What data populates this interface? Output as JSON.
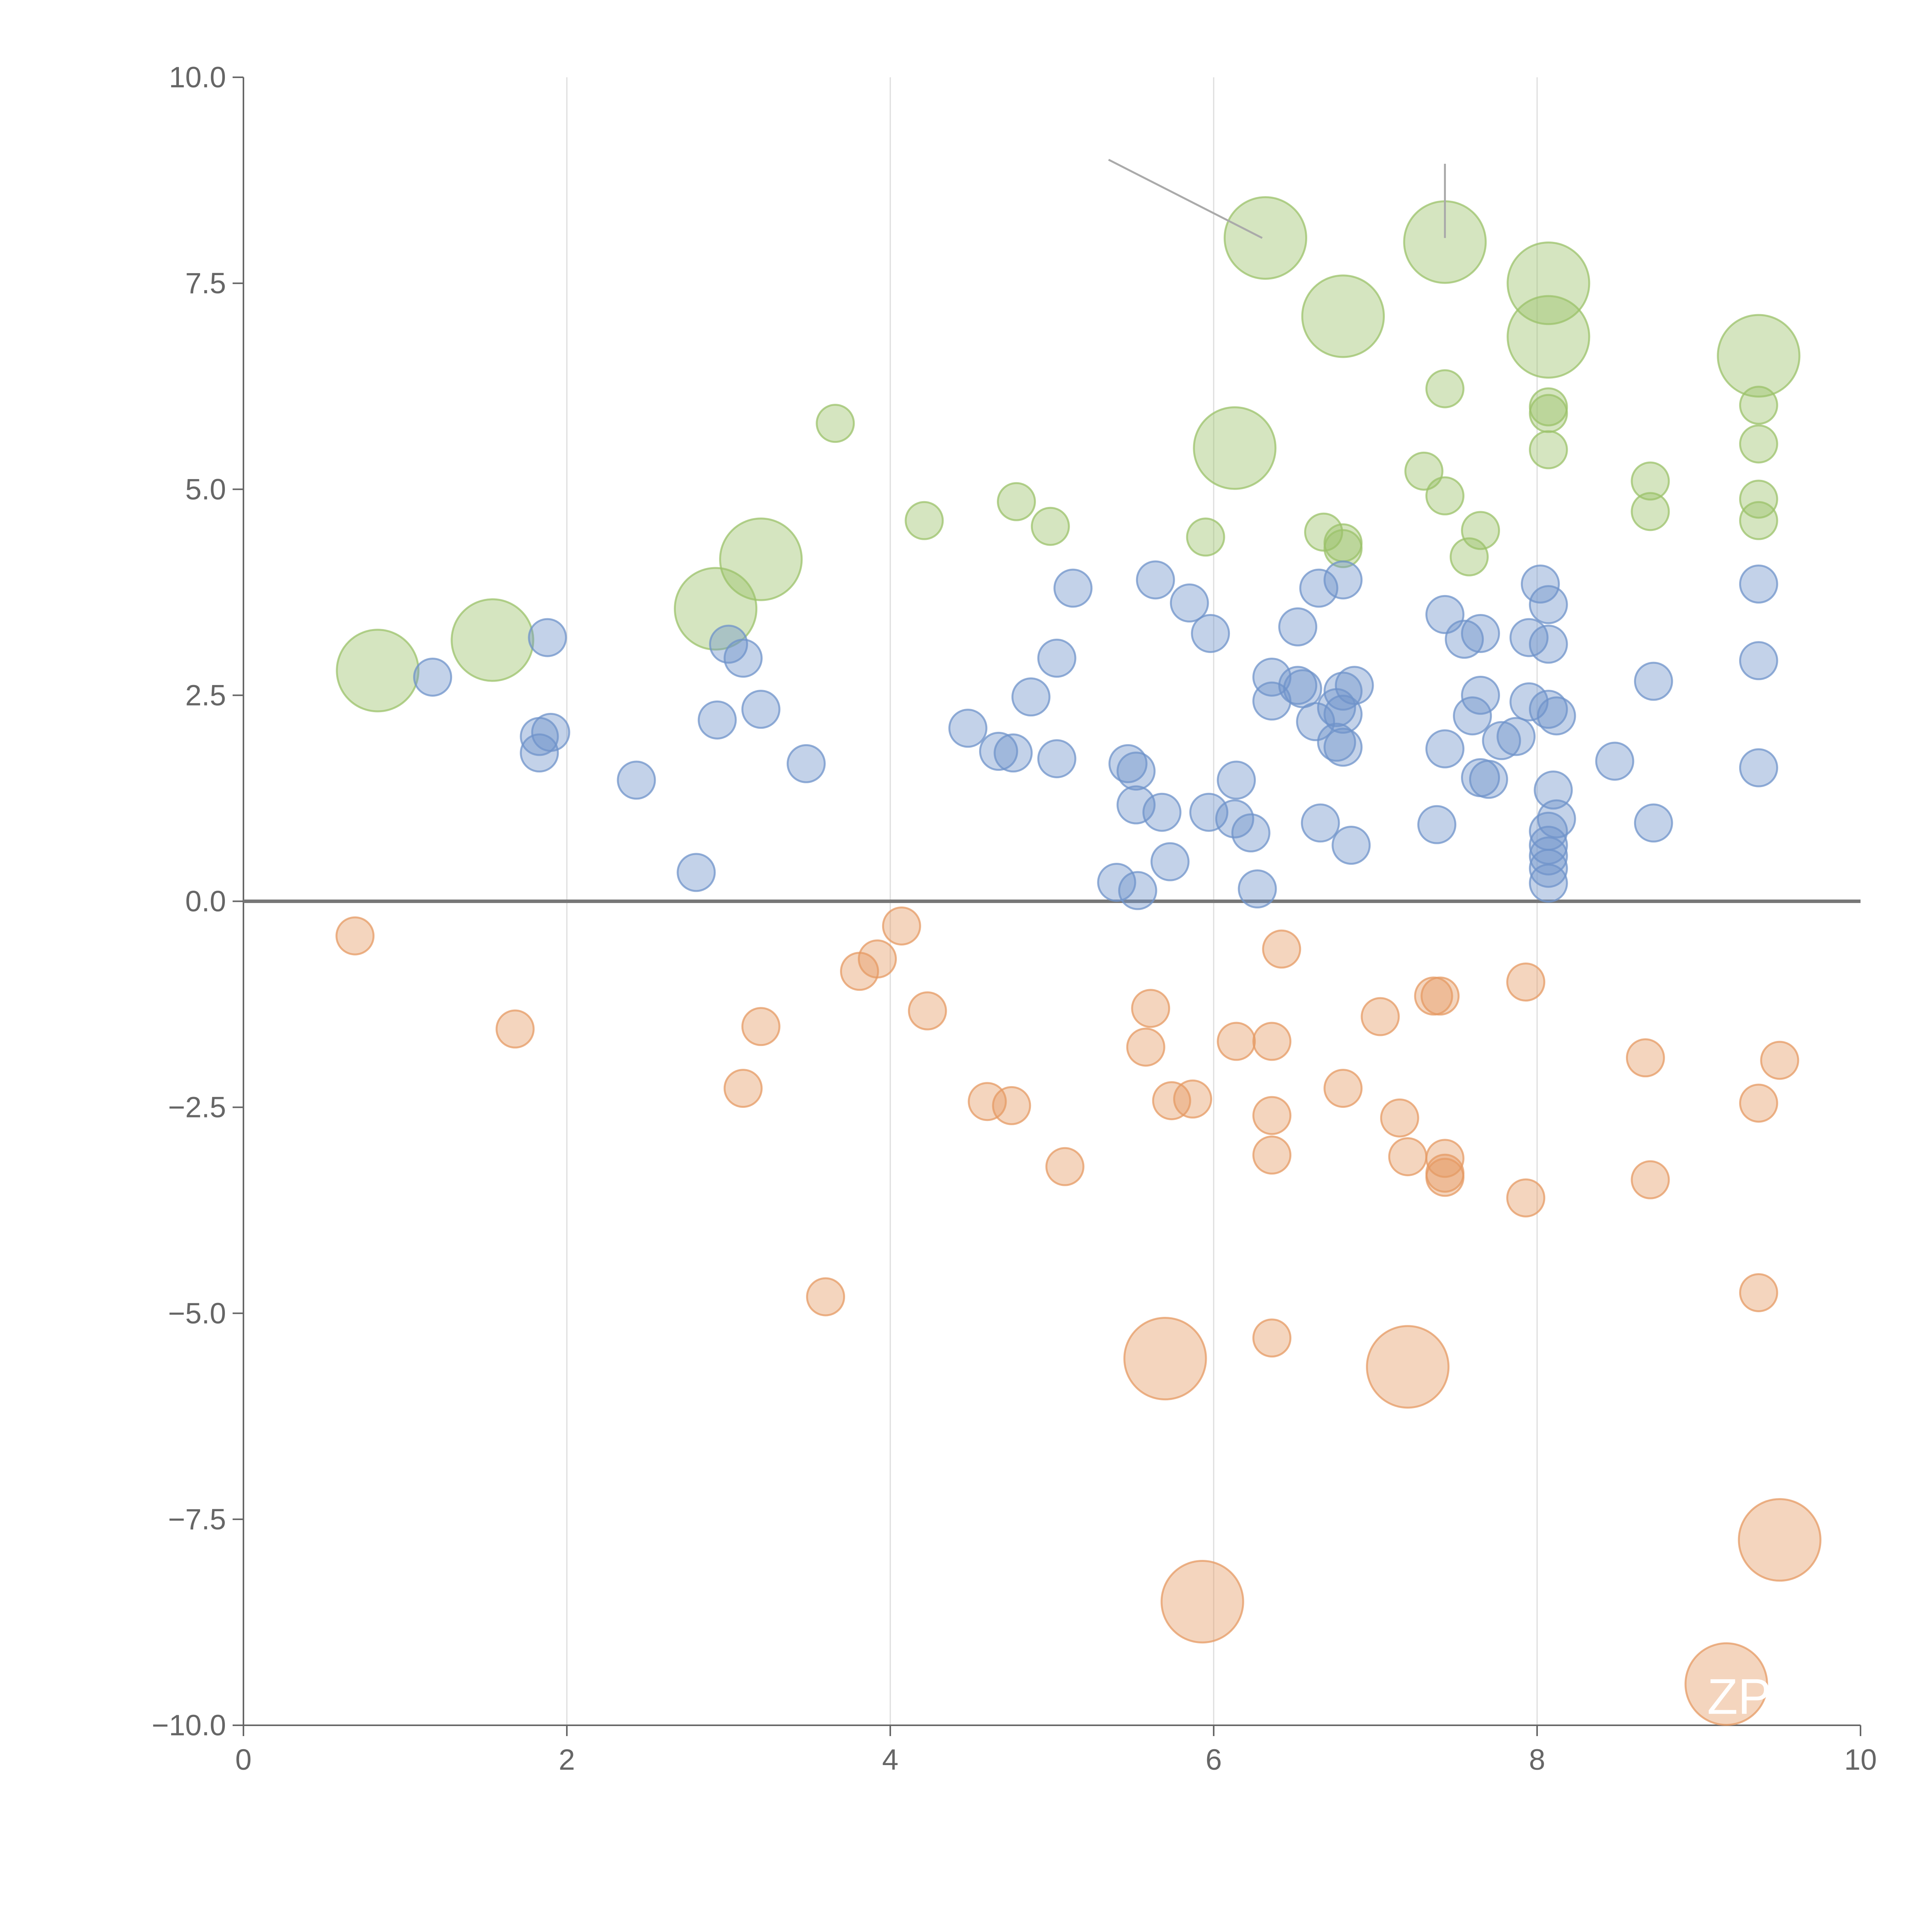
{
  "chart_data": {
    "type": "scatter",
    "title": "",
    "xlabel": "",
    "ylabel": "",
    "xlim": [
      0,
      10
    ],
    "ylim": [
      -10,
      10
    ],
    "x_ticks": [
      "0",
      "2",
      "4",
      "6",
      "8",
      "10"
    ],
    "y_ticks": [
      "10.0",
      "7.5",
      "5.0",
      "2.5",
      "0.0",
      "−2.5",
      "−5.0",
      "−7.5",
      "−10.0"
    ],
    "x_tick_values": [
      0,
      2,
      4,
      6,
      8,
      10
    ],
    "y_tick_values": [
      10,
      7.5,
      5,
      2.5,
      0,
      -2.5,
      -5,
      -7.5,
      -10
    ],
    "vertical_grid": [
      2,
      4,
      6,
      8
    ],
    "horizontal_reference_line": 0,
    "colors": {
      "green": "#9bc26a",
      "blue": "#6f93ca",
      "orange": "#e59a63",
      "axis": "#666666",
      "grid": "#dddddd"
    },
    "leader_lines": [
      {
        "x1": 5.35,
        "y1": 9.0,
        "x2": 6.3,
        "y2": 8.05
      },
      {
        "x1": 7.43,
        "y1": 8.95,
        "x2": 7.43,
        "y2": 8.05
      }
    ],
    "visible_labels": [
      {
        "text": "ZP",
        "x": 9.25,
        "y": -9.65
      }
    ],
    "series": [
      {
        "color": "green",
        "points": [
          {
            "x": 6.32,
            "y": 8.05,
            "s": 2.2
          },
          {
            "x": 7.43,
            "y": 8.0,
            "s": 2.2
          },
          {
            "x": 8.07,
            "y": 7.5,
            "s": 2.2
          },
          {
            "x": 6.8,
            "y": 7.1,
            "s": 2.2
          },
          {
            "x": 8.07,
            "y": 6.85,
            "s": 2.2
          },
          {
            "x": 9.37,
            "y": 6.62,
            "s": 2.2
          },
          {
            "x": 6.13,
            "y": 5.5,
            "s": 2.2
          },
          {
            "x": 3.2,
            "y": 4.15,
            "s": 2.2
          },
          {
            "x": 2.92,
            "y": 3.55,
            "s": 2.2
          },
          {
            "x": 1.54,
            "y": 3.17,
            "s": 2.2
          },
          {
            "x": 0.83,
            "y": 2.8,
            "s": 2.2
          },
          {
            "x": 3.66,
            "y": 5.8,
            "s": 1
          },
          {
            "x": 7.43,
            "y": 6.22,
            "s": 1
          },
          {
            "x": 8.07,
            "y": 6.0,
            "s": 1
          },
          {
            "x": 8.07,
            "y": 5.92,
            "s": 1
          },
          {
            "x": 9.37,
            "y": 6.02,
            "s": 1
          },
          {
            "x": 9.37,
            "y": 5.55,
            "s": 1
          },
          {
            "x": 8.07,
            "y": 5.48,
            "s": 1
          },
          {
            "x": 7.3,
            "y": 5.22,
            "s": 1
          },
          {
            "x": 8.7,
            "y": 5.1,
            "s": 1
          },
          {
            "x": 7.43,
            "y": 4.92,
            "s": 1
          },
          {
            "x": 9.37,
            "y": 4.88,
            "s": 1
          },
          {
            "x": 4.78,
            "y": 4.85,
            "s": 1
          },
          {
            "x": 8.7,
            "y": 4.73,
            "s": 1
          },
          {
            "x": 4.21,
            "y": 4.62,
            "s": 1
          },
          {
            "x": 9.37,
            "y": 4.62,
            "s": 1
          },
          {
            "x": 4.99,
            "y": 4.55,
            "s": 1
          },
          {
            "x": 7.65,
            "y": 4.5,
            "s": 1
          },
          {
            "x": 6.68,
            "y": 4.48,
            "s": 1
          },
          {
            "x": 5.95,
            "y": 4.42,
            "s": 1
          },
          {
            "x": 6.8,
            "y": 4.35,
            "s": 1
          },
          {
            "x": 6.8,
            "y": 4.28,
            "s": 1
          },
          {
            "x": 7.58,
            "y": 4.18,
            "s": 1
          }
        ]
      },
      {
        "color": "blue",
        "points": [
          {
            "x": 5.64,
            "y": 3.9,
            "s": 1
          },
          {
            "x": 6.8,
            "y": 3.9,
            "s": 1
          },
          {
            "x": 8.02,
            "y": 3.85,
            "s": 1
          },
          {
            "x": 9.37,
            "y": 3.85,
            "s": 1
          },
          {
            "x": 6.65,
            "y": 3.8,
            "s": 1
          },
          {
            "x": 5.13,
            "y": 3.8,
            "s": 1
          },
          {
            "x": 5.85,
            "y": 3.62,
            "s": 1
          },
          {
            "x": 8.07,
            "y": 3.6,
            "s": 1
          },
          {
            "x": 7.43,
            "y": 3.48,
            "s": 1
          },
          {
            "x": 6.52,
            "y": 3.33,
            "s": 1
          },
          {
            "x": 5.98,
            "y": 3.25,
            "s": 1
          },
          {
            "x": 7.65,
            "y": 3.25,
            "s": 1
          },
          {
            "x": 1.88,
            "y": 3.2,
            "s": 1
          },
          {
            "x": 7.55,
            "y": 3.18,
            "s": 1
          },
          {
            "x": 7.95,
            "y": 3.2,
            "s": 1
          },
          {
            "x": 3.0,
            "y": 3.12,
            "s": 1
          },
          {
            "x": 8.07,
            "y": 3.12,
            "s": 1
          },
          {
            "x": 3.09,
            "y": 2.95,
            "s": 1
          },
          {
            "x": 5.03,
            "y": 2.95,
            "s": 1
          },
          {
            "x": 9.37,
            "y": 2.92,
            "s": 1
          },
          {
            "x": 1.17,
            "y": 2.72,
            "s": 1
          },
          {
            "x": 6.36,
            "y": 2.72,
            "s": 1
          },
          {
            "x": 8.72,
            "y": 2.67,
            "s": 1
          },
          {
            "x": 6.87,
            "y": 2.62,
            "s": 1
          },
          {
            "x": 6.52,
            "y": 2.62,
            "s": 1
          },
          {
            "x": 6.55,
            "y": 2.58,
            "s": 1
          },
          {
            "x": 6.8,
            "y": 2.55,
            "s": 1
          },
          {
            "x": 4.87,
            "y": 2.48,
            "s": 1
          },
          {
            "x": 7.65,
            "y": 2.5,
            "s": 1
          },
          {
            "x": 6.36,
            "y": 2.43,
            "s": 1
          },
          {
            "x": 7.95,
            "y": 2.42,
            "s": 1
          },
          {
            "x": 6.76,
            "y": 2.35,
            "s": 1
          },
          {
            "x": 8.07,
            "y": 2.33,
            "s": 1
          },
          {
            "x": 3.2,
            "y": 2.33,
            "s": 1
          },
          {
            "x": 6.8,
            "y": 2.27,
            "s": 1
          },
          {
            "x": 7.6,
            "y": 2.25,
            "s": 1
          },
          {
            "x": 8.12,
            "y": 2.25,
            "s": 1
          },
          {
            "x": 2.93,
            "y": 2.2,
            "s": 1
          },
          {
            "x": 6.63,
            "y": 2.18,
            "s": 1
          },
          {
            "x": 4.48,
            "y": 2.1,
            "s": 1
          },
          {
            "x": 1.9,
            "y": 2.05,
            "s": 1
          },
          {
            "x": 1.83,
            "y": 2.0,
            "s": 1
          },
          {
            "x": 7.87,
            "y": 2.0,
            "s": 1
          },
          {
            "x": 7.78,
            "y": 1.95,
            "s": 1
          },
          {
            "x": 6.76,
            "y": 1.93,
            "s": 1
          },
          {
            "x": 6.8,
            "y": 1.87,
            "s": 1
          },
          {
            "x": 7.43,
            "y": 1.85,
            "s": 1
          },
          {
            "x": 1.83,
            "y": 1.8,
            "s": 1
          },
          {
            "x": 4.67,
            "y": 1.82,
            "s": 1
          },
          {
            "x": 4.76,
            "y": 1.8,
            "s": 1
          },
          {
            "x": 5.03,
            "y": 1.73,
            "s": 1
          },
          {
            "x": 8.48,
            "y": 1.7,
            "s": 1
          },
          {
            "x": 3.48,
            "y": 1.67,
            "s": 1
          },
          {
            "x": 5.47,
            "y": 1.67,
            "s": 1
          },
          {
            "x": 9.37,
            "y": 1.62,
            "s": 1
          },
          {
            "x": 5.52,
            "y": 1.58,
            "s": 1
          },
          {
            "x": 7.65,
            "y": 1.5,
            "s": 1
          },
          {
            "x": 7.7,
            "y": 1.48,
            "s": 1
          },
          {
            "x": 2.43,
            "y": 1.47,
            "s": 1
          },
          {
            "x": 6.14,
            "y": 1.47,
            "s": 1
          },
          {
            "x": 8.1,
            "y": 1.35,
            "s": 1
          },
          {
            "x": 5.52,
            "y": 1.17,
            "s": 1
          },
          {
            "x": 5.68,
            "y": 1.08,
            "s": 1
          },
          {
            "x": 5.97,
            "y": 1.08,
            "s": 1
          },
          {
            "x": 8.12,
            "y": 1.0,
            "s": 1
          },
          {
            "x": 6.13,
            "y": 1.0,
            "s": 1
          },
          {
            "x": 6.66,
            "y": 0.95,
            "s": 1
          },
          {
            "x": 8.72,
            "y": 0.95,
            "s": 1
          },
          {
            "x": 7.38,
            "y": 0.93,
            "s": 1
          },
          {
            "x": 8.07,
            "y": 0.85,
            "s": 1
          },
          {
            "x": 6.23,
            "y": 0.83,
            "s": 1
          },
          {
            "x": 8.07,
            "y": 0.68,
            "s": 1
          },
          {
            "x": 6.85,
            "y": 0.68,
            "s": 1
          },
          {
            "x": 8.07,
            "y": 0.55,
            "s": 1
          },
          {
            "x": 5.73,
            "y": 0.48,
            "s": 1
          },
          {
            "x": 8.07,
            "y": 0.4,
            "s": 1
          },
          {
            "x": 2.8,
            "y": 0.35,
            "s": 1
          },
          {
            "x": 5.4,
            "y": 0.23,
            "s": 1
          },
          {
            "x": 8.07,
            "y": 0.22,
            "s": 1
          },
          {
            "x": 5.53,
            "y": 0.13,
            "s": 1
          },
          {
            "x": 6.27,
            "y": 0.15,
            "s": 1
          }
        ]
      },
      {
        "color": "orange",
        "points": [
          {
            "x": 4.07,
            "y": -0.3,
            "s": 1
          },
          {
            "x": 0.69,
            "y": -0.42,
            "s": 1
          },
          {
            "x": 6.42,
            "y": -0.58,
            "s": 1
          },
          {
            "x": 3.92,
            "y": -0.7,
            "s": 1
          },
          {
            "x": 3.81,
            "y": -0.85,
            "s": 1
          },
          {
            "x": 7.93,
            "y": -0.98,
            "s": 1
          },
          {
            "x": 7.36,
            "y": -1.15,
            "s": 1
          },
          {
            "x": 7.4,
            "y": -1.15,
            "s": 1
          },
          {
            "x": 5.61,
            "y": -1.3,
            "s": 1
          },
          {
            "x": 4.23,
            "y": -1.33,
            "s": 1
          },
          {
            "x": 7.03,
            "y": -1.4,
            "s": 1
          },
          {
            "x": 1.68,
            "y": -1.55,
            "s": 1
          },
          {
            "x": 3.2,
            "y": -1.52,
            "s": 1
          },
          {
            "x": 6.14,
            "y": -1.7,
            "s": 1
          },
          {
            "x": 6.36,
            "y": -1.7,
            "s": 1
          },
          {
            "x": 5.58,
            "y": -1.77,
            "s": 1
          },
          {
            "x": 8.67,
            "y": -1.9,
            "s": 1
          },
          {
            "x": 9.5,
            "y": -1.93,
            "s": 1
          },
          {
            "x": 3.09,
            "y": -2.27,
            "s": 1
          },
          {
            "x": 6.8,
            "y": -2.27,
            "s": 1
          },
          {
            "x": 5.87,
            "y": -2.4,
            "s": 1
          },
          {
            "x": 5.74,
            "y": -2.42,
            "s": 1
          },
          {
            "x": 4.6,
            "y": -2.43,
            "s": 1
          },
          {
            "x": 4.75,
            "y": -2.48,
            "s": 1
          },
          {
            "x": 9.37,
            "y": -2.45,
            "s": 1
          },
          {
            "x": 6.36,
            "y": -2.6,
            "s": 1
          },
          {
            "x": 7.15,
            "y": -2.63,
            "s": 1
          },
          {
            "x": 6.36,
            "y": -3.08,
            "s": 1
          },
          {
            "x": 7.43,
            "y": -3.12,
            "s": 1
          },
          {
            "x": 7.2,
            "y": -3.1,
            "s": 1
          },
          {
            "x": 5.08,
            "y": -3.22,
            "s": 1
          },
          {
            "x": 7.43,
            "y": -3.3,
            "s": 1
          },
          {
            "x": 7.43,
            "y": -3.35,
            "s": 1
          },
          {
            "x": 8.7,
            "y": -3.38,
            "s": 1
          },
          {
            "x": 7.93,
            "y": -3.6,
            "s": 1
          },
          {
            "x": 9.37,
            "y": -4.75,
            "s": 1
          },
          {
            "x": 3.6,
            "y": -4.8,
            "s": 1
          },
          {
            "x": 6.36,
            "y": -5.3,
            "s": 1
          },
          {
            "x": 5.7,
            "y": -5.55,
            "s": 2.2
          },
          {
            "x": 7.2,
            "y": -5.65,
            "s": 2.2
          },
          {
            "x": 9.5,
            "y": -7.75,
            "s": 2.2
          },
          {
            "x": 5.93,
            "y": -8.5,
            "s": 2.2
          },
          {
            "x": 9.17,
            "y": -9.5,
            "s": 2.2
          }
        ]
      }
    ]
  }
}
